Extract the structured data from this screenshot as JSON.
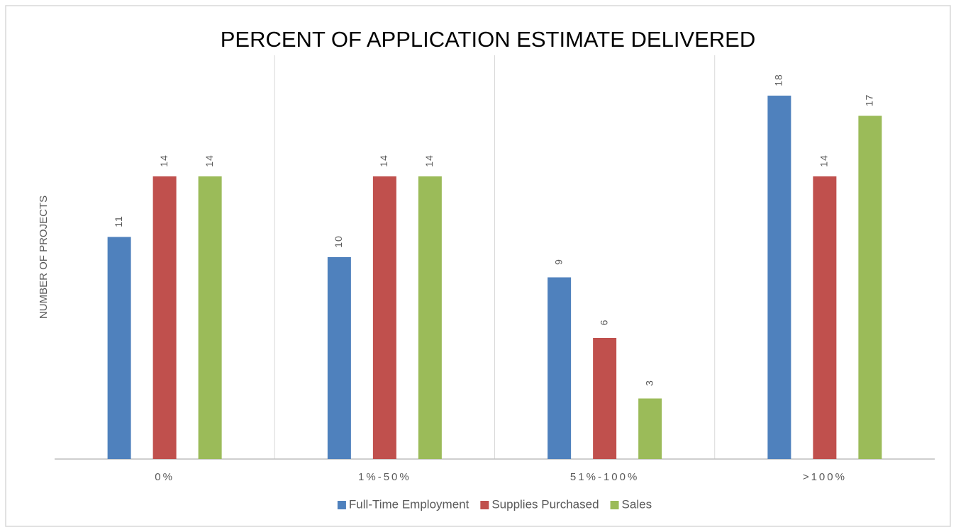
{
  "chart_data": {
    "type": "bar",
    "title": "PERCENT OF APPLICATION ESTIMATE DELIVERED",
    "y_label": "NUMBER OF PROJECTS",
    "categories": [
      "0%",
      "1%-50%",
      "51%-100%",
      ">100%"
    ],
    "series": [
      {
        "name": "Full-Time Employment",
        "color": "#4f81bd",
        "values": [
          11,
          10,
          9,
          18
        ]
      },
      {
        "name": "Supplies Purchased",
        "color": "#c0504d",
        "values": [
          14,
          14,
          6,
          14
        ]
      },
      {
        "name": "Sales",
        "color": "#9bbb59",
        "values": [
          14,
          14,
          3,
          17
        ]
      }
    ],
    "ylim": [
      0,
      20
    ],
    "legend": "bottom"
  }
}
